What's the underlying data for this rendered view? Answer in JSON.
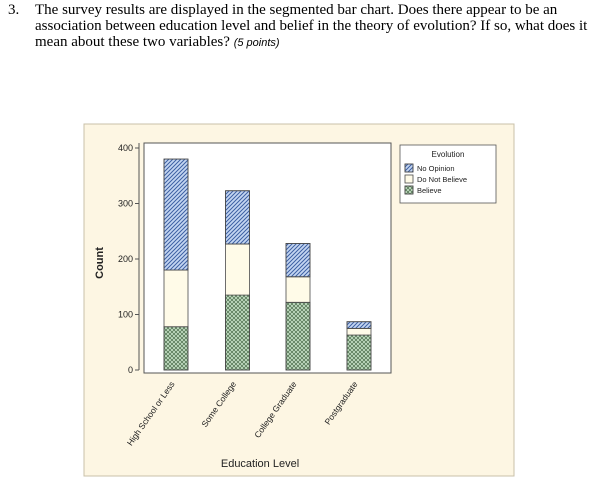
{
  "question": {
    "number": "3.",
    "text": "The survey results are displayed in the segmented bar chart. Does there appear to be an association between education level and belief in the theory of evolution? If so, what does it mean about these two variables?",
    "points": "(5 points)"
  },
  "chart_data": {
    "type": "bar",
    "stacked": true,
    "categories": [
      "High School or Less",
      "Some College",
      "College Graduate",
      "Postgraduate"
    ],
    "series": [
      {
        "name": "Believe",
        "values": [
          78,
          135,
          122,
          63
        ],
        "fill": "#c4dfc4",
        "pattern": "crosshatch"
      },
      {
        "name": "Do Not Believe",
        "values": [
          102,
          92,
          46,
          12
        ],
        "fill": "#fffbe8",
        "pattern": "none"
      },
      {
        "name": "No Opinion",
        "values": [
          200,
          96,
          60,
          12
        ],
        "fill": "#c4d6f2",
        "pattern": "diagonal"
      }
    ],
    "legend_title": "Evolution",
    "legend_entries": [
      "No Opinion",
      "Do Not Believe",
      "Believe"
    ],
    "xlabel": "Education Level",
    "ylabel": "Count",
    "yticks": [
      0,
      100,
      200,
      300,
      400
    ],
    "ylim": [
      0,
      400
    ],
    "colors": {
      "background": "#fdf6e3",
      "stroke": "#4a4a4a"
    }
  }
}
